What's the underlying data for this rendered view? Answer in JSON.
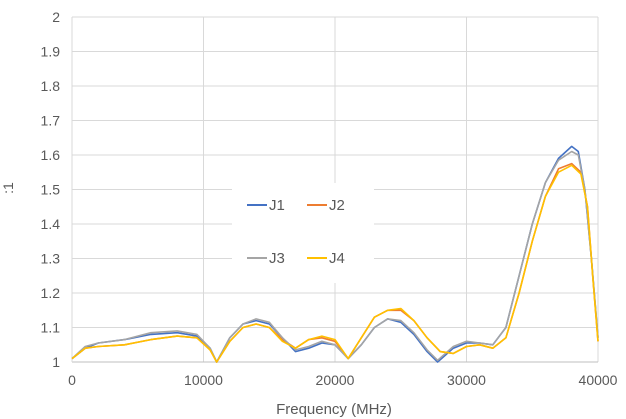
{
  "chart_data": {
    "type": "line",
    "title": "",
    "xlabel": "Frequency (MHz)",
    "ylabel": ":1",
    "xlim": [
      0,
      40000
    ],
    "ylim": [
      1,
      2
    ],
    "x_ticks": [
      "0",
      "10000",
      "20000",
      "30000",
      "40000"
    ],
    "y_ticks": [
      "1",
      "1.1",
      "1.2",
      "1.3",
      "1.4",
      "1.5",
      "1.6",
      "1.7",
      "1.8",
      "1.9",
      "2"
    ],
    "grid": true,
    "legend_position": "center",
    "series": [
      {
        "name": "J1",
        "color": "#4472C4",
        "points": [
          [
            0,
            1.01
          ],
          [
            1000,
            1.04
          ],
          [
            2000,
            1.055
          ],
          [
            4000,
            1.065
          ],
          [
            6000,
            1.08
          ],
          [
            8000,
            1.085
          ],
          [
            9500,
            1.075
          ],
          [
            10500,
            1.04
          ],
          [
            11000,
            1.0
          ],
          [
            12000,
            1.07
          ],
          [
            13000,
            1.11
          ],
          [
            14000,
            1.12
          ],
          [
            15000,
            1.11
          ],
          [
            16000,
            1.07
          ],
          [
            17000,
            1.03
          ],
          [
            18000,
            1.04
          ],
          [
            19000,
            1.055
          ],
          [
            20000,
            1.05
          ],
          [
            21000,
            1.01
          ],
          [
            22000,
            1.05
          ],
          [
            23000,
            1.1
          ],
          [
            24000,
            1.125
          ],
          [
            25000,
            1.115
          ],
          [
            26000,
            1.08
          ],
          [
            27000,
            1.03
          ],
          [
            27800,
            1.0
          ],
          [
            29000,
            1.04
          ],
          [
            30000,
            1.055
          ],
          [
            31000,
            1.055
          ],
          [
            32000,
            1.05
          ],
          [
            33000,
            1.1
          ],
          [
            34000,
            1.25
          ],
          [
            35000,
            1.4
          ],
          [
            36000,
            1.52
          ],
          [
            37000,
            1.59
          ],
          [
            38000,
            1.625
          ],
          [
            38500,
            1.61
          ],
          [
            39000,
            1.5
          ],
          [
            39500,
            1.3
          ],
          [
            40000,
            1.07
          ]
        ]
      },
      {
        "name": "J2",
        "color": "#ED7D31",
        "points": [
          [
            0,
            1.01
          ],
          [
            1000,
            1.04
          ],
          [
            2000,
            1.045
          ],
          [
            4000,
            1.05
          ],
          [
            6000,
            1.065
          ],
          [
            8000,
            1.075
          ],
          [
            9500,
            1.07
          ],
          [
            10500,
            1.035
          ],
          [
            11000,
            1.0
          ],
          [
            12000,
            1.06
          ],
          [
            13000,
            1.1
          ],
          [
            14000,
            1.11
          ],
          [
            15000,
            1.1
          ],
          [
            16000,
            1.065
          ],
          [
            17000,
            1.04
          ],
          [
            18000,
            1.065
          ],
          [
            19000,
            1.07
          ],
          [
            20000,
            1.06
          ],
          [
            21000,
            1.01
          ],
          [
            22000,
            1.07
          ],
          [
            23000,
            1.13
          ],
          [
            24000,
            1.15
          ],
          [
            25000,
            1.15
          ],
          [
            26000,
            1.12
          ],
          [
            27000,
            1.07
          ],
          [
            28000,
            1.03
          ],
          [
            29000,
            1.025
          ],
          [
            30000,
            1.045
          ],
          [
            31000,
            1.05
          ],
          [
            32000,
            1.04
          ],
          [
            33000,
            1.07
          ],
          [
            34000,
            1.2
          ],
          [
            35000,
            1.35
          ],
          [
            36000,
            1.48
          ],
          [
            37000,
            1.56
          ],
          [
            38000,
            1.575
          ],
          [
            38700,
            1.55
          ],
          [
            39200,
            1.45
          ],
          [
            39600,
            1.25
          ],
          [
            40000,
            1.06
          ]
        ]
      },
      {
        "name": "J3",
        "color": "#A5A5A5",
        "points": [
          [
            0,
            1.01
          ],
          [
            1000,
            1.045
          ],
          [
            2000,
            1.055
          ],
          [
            4000,
            1.065
          ],
          [
            6000,
            1.085
          ],
          [
            8000,
            1.09
          ],
          [
            9500,
            1.08
          ],
          [
            10500,
            1.04
          ],
          [
            11000,
            1.0
          ],
          [
            12000,
            1.07
          ],
          [
            13000,
            1.11
          ],
          [
            14000,
            1.125
          ],
          [
            15000,
            1.115
          ],
          [
            16000,
            1.07
          ],
          [
            17000,
            1.035
          ],
          [
            18000,
            1.045
          ],
          [
            19000,
            1.06
          ],
          [
            20000,
            1.05
          ],
          [
            21000,
            1.01
          ],
          [
            22000,
            1.05
          ],
          [
            23000,
            1.1
          ],
          [
            24000,
            1.125
          ],
          [
            25000,
            1.12
          ],
          [
            26000,
            1.085
          ],
          [
            27000,
            1.035
          ],
          [
            27800,
            1.005
          ],
          [
            29000,
            1.045
          ],
          [
            30000,
            1.06
          ],
          [
            31000,
            1.055
          ],
          [
            32000,
            1.05
          ],
          [
            33000,
            1.1
          ],
          [
            34000,
            1.25
          ],
          [
            35000,
            1.4
          ],
          [
            36000,
            1.52
          ],
          [
            37000,
            1.585
          ],
          [
            38000,
            1.61
          ],
          [
            38500,
            1.6
          ],
          [
            39000,
            1.5
          ],
          [
            39500,
            1.3
          ],
          [
            40000,
            1.07
          ]
        ]
      },
      {
        "name": "J4",
        "color": "#FFC000",
        "points": [
          [
            0,
            1.01
          ],
          [
            1000,
            1.04
          ],
          [
            2000,
            1.045
          ],
          [
            4000,
            1.05
          ],
          [
            6000,
            1.065
          ],
          [
            8000,
            1.075
          ],
          [
            9500,
            1.07
          ],
          [
            10500,
            1.035
          ],
          [
            11000,
            1.0
          ],
          [
            12000,
            1.06
          ],
          [
            13000,
            1.1
          ],
          [
            14000,
            1.11
          ],
          [
            15000,
            1.1
          ],
          [
            16000,
            1.06
          ],
          [
            17000,
            1.04
          ],
          [
            18000,
            1.065
          ],
          [
            19000,
            1.075
          ],
          [
            20000,
            1.065
          ],
          [
            21000,
            1.01
          ],
          [
            22000,
            1.07
          ],
          [
            23000,
            1.13
          ],
          [
            24000,
            1.15
          ],
          [
            25000,
            1.155
          ],
          [
            26000,
            1.12
          ],
          [
            27000,
            1.07
          ],
          [
            28000,
            1.03
          ],
          [
            29000,
            1.025
          ],
          [
            30000,
            1.045
          ],
          [
            31000,
            1.05
          ],
          [
            32000,
            1.04
          ],
          [
            33000,
            1.07
          ],
          [
            34000,
            1.2
          ],
          [
            35000,
            1.35
          ],
          [
            36000,
            1.48
          ],
          [
            37000,
            1.55
          ],
          [
            38000,
            1.57
          ],
          [
            38700,
            1.545
          ],
          [
            39200,
            1.45
          ],
          [
            39600,
            1.25
          ],
          [
            40000,
            1.06
          ]
        ]
      }
    ]
  }
}
